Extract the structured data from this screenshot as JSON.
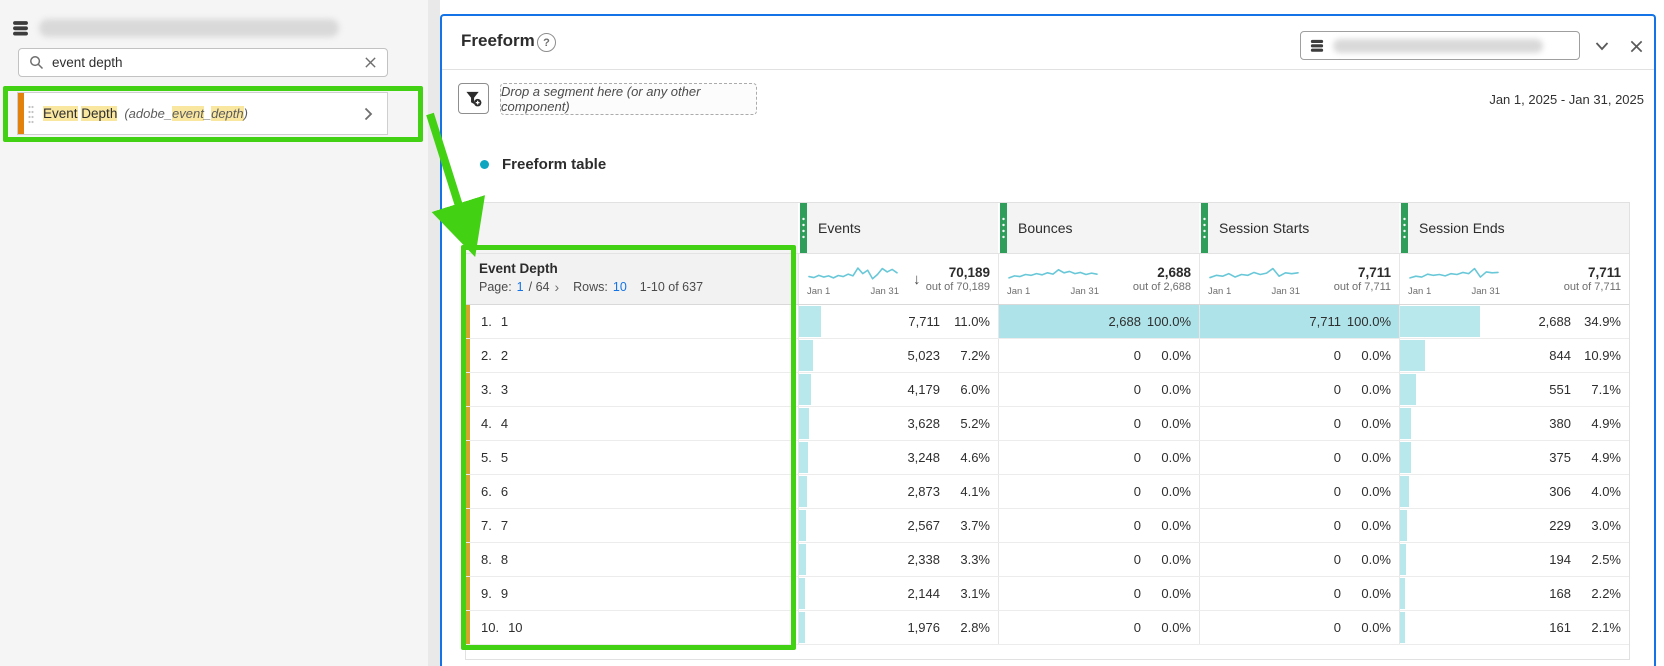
{
  "sidebar": {
    "search": {
      "value": "event depth"
    },
    "component": {
      "name_parts": [
        {
          "t": "Event",
          "h": true
        },
        {
          "t": " ",
          "h": false
        },
        {
          "t": "Depth",
          "h": true
        }
      ],
      "id_parts": [
        {
          "t": "(adobe_",
          "h": false
        },
        {
          "t": "event",
          "h": true
        },
        {
          "t": "_",
          "h": false
        },
        {
          "t": "depth",
          "h": true
        },
        {
          "t": ")",
          "h": false
        }
      ]
    }
  },
  "panel": {
    "title": "Freeform",
    "help_glyph": "?",
    "drop_zone": "Drop a segment here (or any other component)",
    "date_range": "Jan 1, 2025 - Jan 31, 2025"
  },
  "table": {
    "title": "Freeform table",
    "dimension": {
      "name": "Event Depth",
      "page_label": "Page:",
      "page": "1",
      "page_total": "/ 64",
      "rows_label": "Rows:",
      "rows": "10",
      "range": "1-10 of 637"
    },
    "columns": [
      {
        "label": "Events",
        "total": "70,189",
        "out_of": "out of 70,189",
        "start": "Jan 1",
        "end": "Jan 31",
        "sorted": true,
        "spark": [
          0.38,
          0.32,
          0.45,
          0.35,
          0.42,
          0.3,
          0.44,
          0.38,
          0.52,
          0.42,
          0.88,
          0.55,
          0.75,
          0.25,
          0.5,
          0.85,
          0.65,
          0.8,
          0.6
        ]
      },
      {
        "label": "Bounces",
        "total": "2,688",
        "out_of": "out of 2,688",
        "start": "Jan 1",
        "end": "Jan 31",
        "sorted": false,
        "spark": [
          0.3,
          0.42,
          0.38,
          0.5,
          0.45,
          0.55,
          0.48,
          0.6,
          0.52,
          0.78,
          0.6,
          0.68,
          0.55,
          0.62,
          0.5,
          0.58,
          0.52
        ]
      },
      {
        "label": "Session Starts",
        "total": "7,711",
        "out_of": "out of 7,711",
        "start": "Jan 1",
        "end": "Jan 31",
        "sorted": false,
        "spark": [
          0.32,
          0.45,
          0.4,
          0.55,
          0.35,
          0.5,
          0.45,
          0.62,
          0.5,
          0.58,
          0.85,
          0.4,
          0.6,
          0.55,
          0.6
        ]
      },
      {
        "label": "Session Ends",
        "total": "7,711",
        "out_of": "out of 7,711",
        "start": "Jan 1",
        "end": "Jan 31",
        "sorted": false,
        "spark": [
          0.3,
          0.4,
          0.35,
          0.52,
          0.45,
          0.5,
          0.42,
          0.55,
          0.5,
          0.62,
          0.55,
          0.85,
          0.35,
          0.65,
          0.6,
          0.62
        ]
      }
    ],
    "rows": [
      {
        "rank": "1.",
        "item": "1",
        "cells": [
          {
            "v": "7,711",
            "p": "11.0%",
            "bar": 11
          },
          {
            "v": "2,688",
            "p": "100.0%",
            "bar": 100
          },
          {
            "v": "7,711",
            "p": "100.0%",
            "bar": 100
          },
          {
            "v": "2,688",
            "p": "34.9%",
            "bar": 34.9
          }
        ]
      },
      {
        "rank": "2.",
        "item": "2",
        "cells": [
          {
            "v": "5,023",
            "p": "7.2%",
            "bar": 7.2
          },
          {
            "v": "0",
            "p": "0.0%",
            "bar": 0
          },
          {
            "v": "0",
            "p": "0.0%",
            "bar": 0
          },
          {
            "v": "844",
            "p": "10.9%",
            "bar": 10.9
          }
        ]
      },
      {
        "rank": "3.",
        "item": "3",
        "cells": [
          {
            "v": "4,179",
            "p": "6.0%",
            "bar": 6.0
          },
          {
            "v": "0",
            "p": "0.0%",
            "bar": 0
          },
          {
            "v": "0",
            "p": "0.0%",
            "bar": 0
          },
          {
            "v": "551",
            "p": "7.1%",
            "bar": 7.1
          }
        ]
      },
      {
        "rank": "4.",
        "item": "4",
        "cells": [
          {
            "v": "3,628",
            "p": "5.2%",
            "bar": 5.2
          },
          {
            "v": "0",
            "p": "0.0%",
            "bar": 0
          },
          {
            "v": "0",
            "p": "0.0%",
            "bar": 0
          },
          {
            "v": "380",
            "p": "4.9%",
            "bar": 4.9
          }
        ]
      },
      {
        "rank": "5.",
        "item": "5",
        "cells": [
          {
            "v": "3,248",
            "p": "4.6%",
            "bar": 4.6
          },
          {
            "v": "0",
            "p": "0.0%",
            "bar": 0
          },
          {
            "v": "0",
            "p": "0.0%",
            "bar": 0
          },
          {
            "v": "375",
            "p": "4.9%",
            "bar": 4.9
          }
        ]
      },
      {
        "rank": "6.",
        "item": "6",
        "cells": [
          {
            "v": "2,873",
            "p": "4.1%",
            "bar": 4.1
          },
          {
            "v": "0",
            "p": "0.0%",
            "bar": 0
          },
          {
            "v": "0",
            "p": "0.0%",
            "bar": 0
          },
          {
            "v": "306",
            "p": "4.0%",
            "bar": 4.0
          }
        ]
      },
      {
        "rank": "7.",
        "item": "7",
        "cells": [
          {
            "v": "2,567",
            "p": "3.7%",
            "bar": 3.7
          },
          {
            "v": "0",
            "p": "0.0%",
            "bar": 0
          },
          {
            "v": "0",
            "p": "0.0%",
            "bar": 0
          },
          {
            "v": "229",
            "p": "3.0%",
            "bar": 3.0
          }
        ]
      },
      {
        "rank": "8.",
        "item": "8",
        "cells": [
          {
            "v": "2,338",
            "p": "3.3%",
            "bar": 3.3
          },
          {
            "v": "0",
            "p": "0.0%",
            "bar": 0
          },
          {
            "v": "0",
            "p": "0.0%",
            "bar": 0
          },
          {
            "v": "194",
            "p": "2.5%",
            "bar": 2.5
          }
        ]
      },
      {
        "rank": "9.",
        "item": "9",
        "cells": [
          {
            "v": "2,144",
            "p": "3.1%",
            "bar": 3.1
          },
          {
            "v": "0",
            "p": "0.0%",
            "bar": 0
          },
          {
            "v": "0",
            "p": "0.0%",
            "bar": 0
          },
          {
            "v": "168",
            "p": "2.2%",
            "bar": 2.2
          }
        ]
      },
      {
        "rank": "10.",
        "item": "10",
        "cells": [
          {
            "v": "1,976",
            "p": "2.8%",
            "bar": 2.8
          },
          {
            "v": "0",
            "p": "0.0%",
            "bar": 0
          },
          {
            "v": "0",
            "p": "0.0%",
            "bar": 0
          },
          {
            "v": "161",
            "p": "2.1%",
            "bar": 2.1
          }
        ]
      }
    ]
  },
  "icons": {
    "sort_descending": "↓",
    "next_page": "›",
    "item_chevron": "›",
    "help": "?"
  },
  "colors": {
    "accent_blue": "#1473e6",
    "annotation_green": "#43d114",
    "metric_green": "#2f9e5b",
    "dimension_gold": "#d2a42c",
    "dimension_orange": "#e2820d",
    "bar_cyan": "#b9e8ec",
    "highlight_cyan": "#aee4e9",
    "spark_cyan": "#69c8d8",
    "viz_dot_teal": "#0da5c0",
    "text_highlight_yellow": "#f9e7a0"
  }
}
